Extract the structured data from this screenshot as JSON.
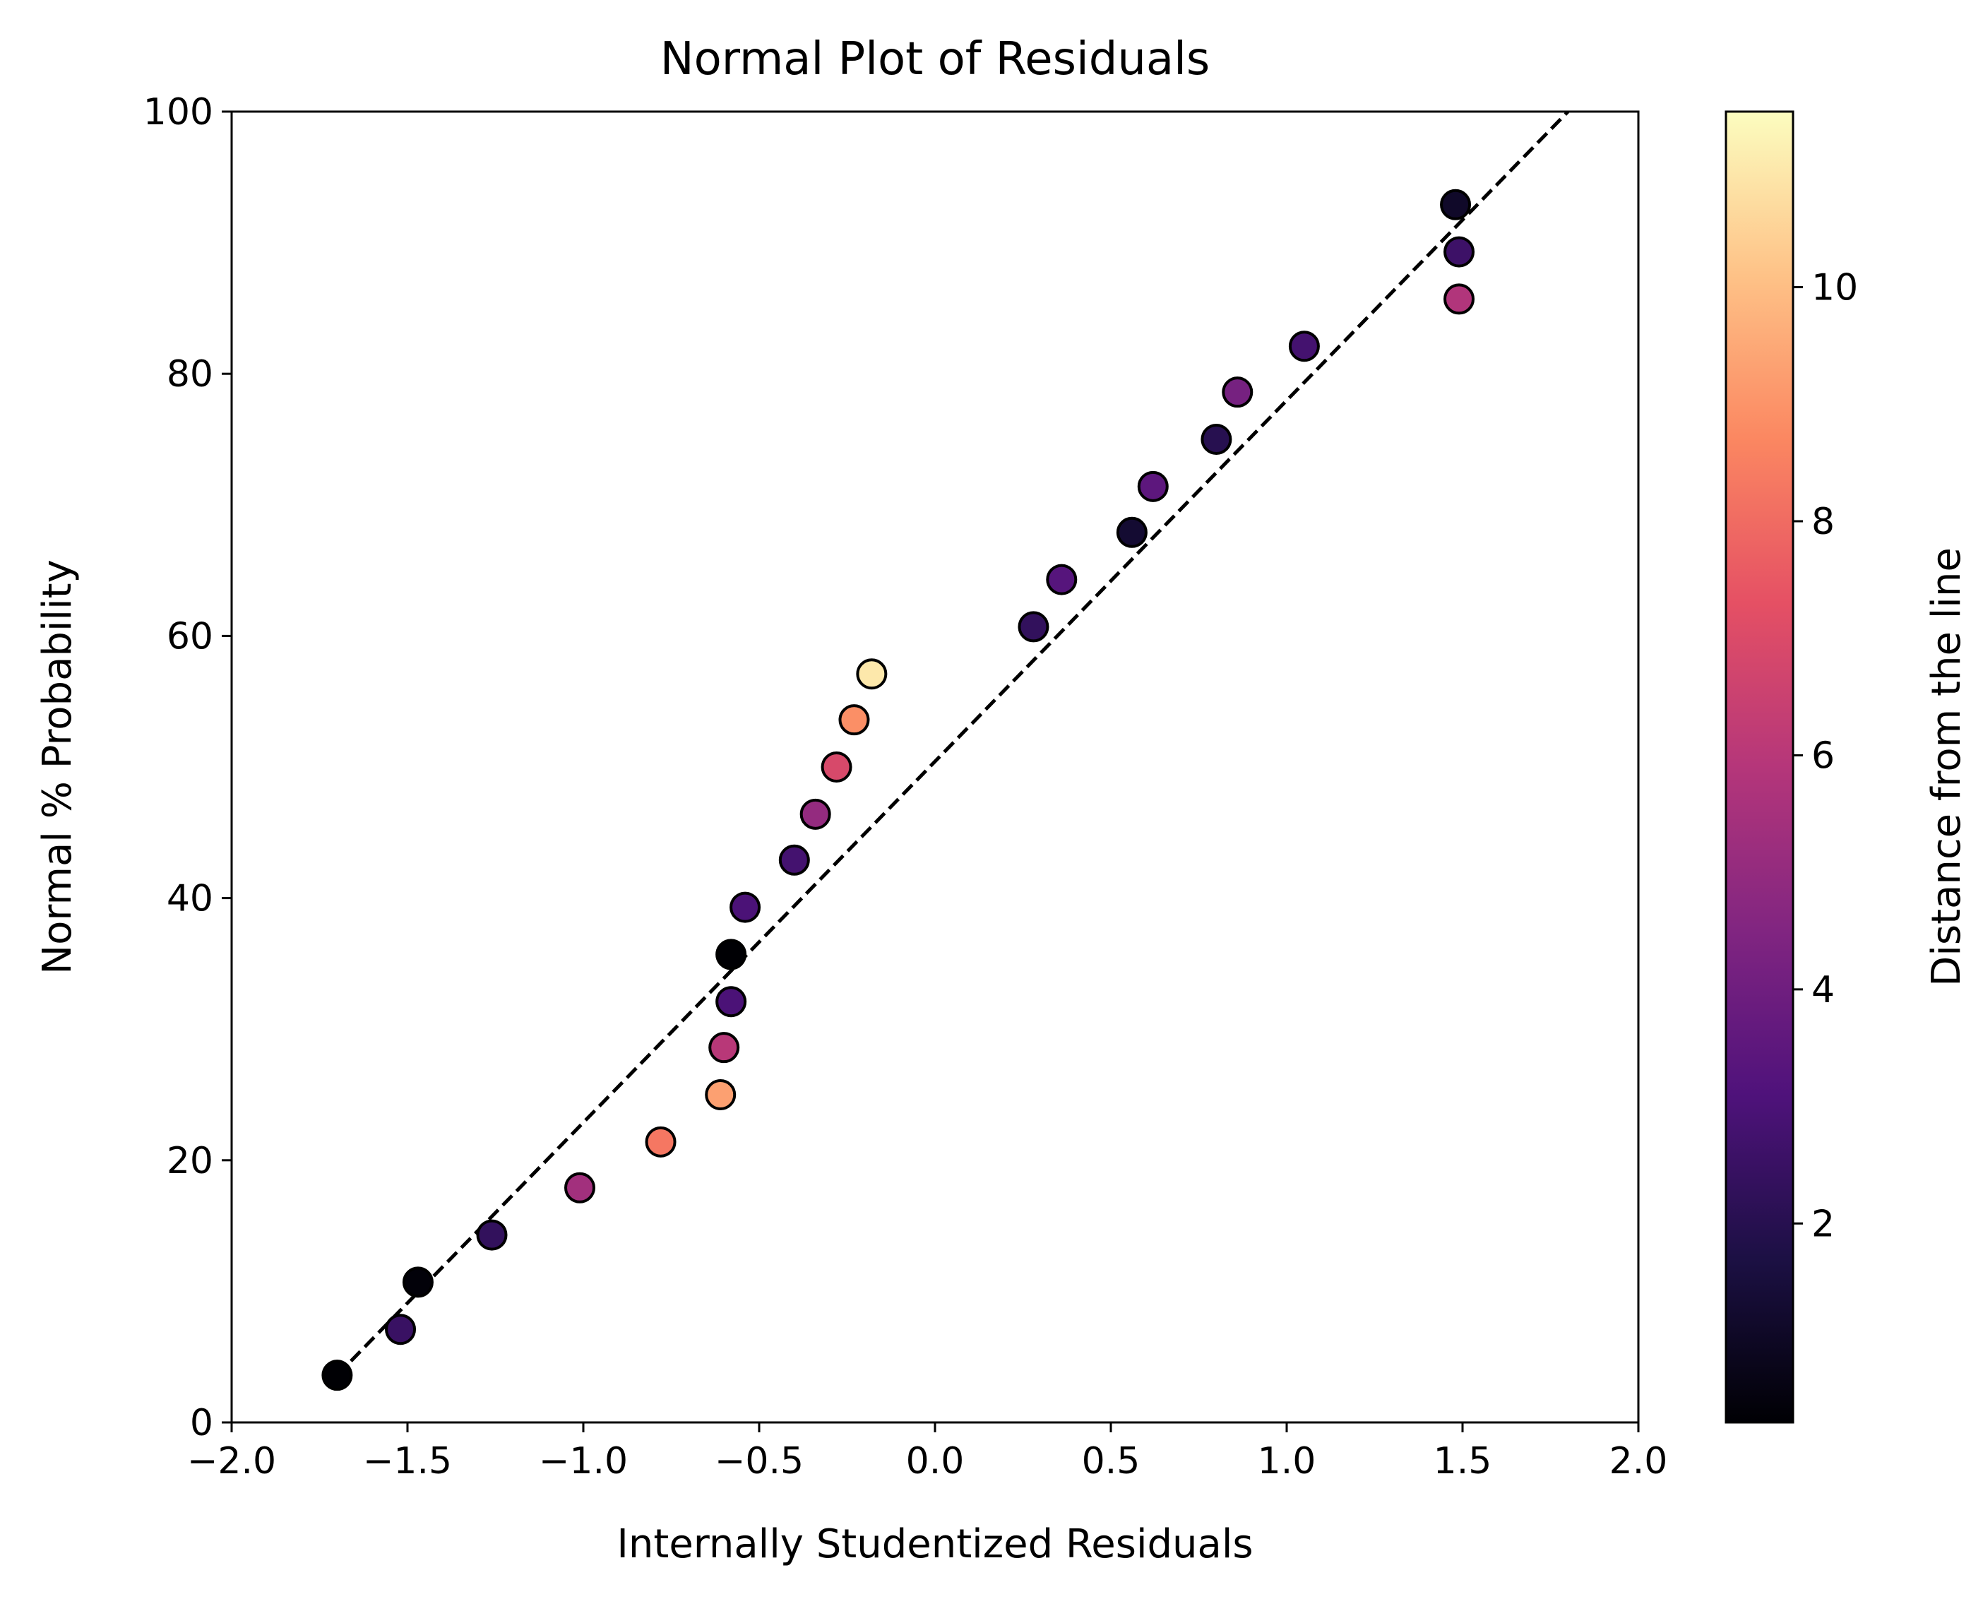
{
  "chart_data": {
    "type": "scatter",
    "title": "Normal Plot of Residuals",
    "xlabel": "Internally Studentized Residuals",
    "ylabel": "Normal % Probability",
    "xlim": [
      -2.0,
      2.0
    ],
    "ylim": [
      0,
      100
    ],
    "xticks": [
      -2.0,
      -1.5,
      -1.0,
      -0.5,
      0.0,
      0.5,
      1.0,
      1.5,
      2.0
    ],
    "xtick_labels": [
      "−2.0",
      "−1.5",
      "−1.0",
      "−0.5",
      "0.0",
      "0.5",
      "1.0",
      "1.5",
      "2.0"
    ],
    "yticks": [
      0,
      20,
      40,
      60,
      80,
      100
    ],
    "ytick_labels": [
      "0",
      "20",
      "40",
      "60",
      "80",
      "100"
    ],
    "reference_line": {
      "style": "dashed",
      "color": "#000000",
      "x": [
        -1.7,
        1.8
      ],
      "y": [
        3.6,
        100
      ]
    },
    "colorbar": {
      "label": "Distance from the line",
      "colormap": "magma",
      "range": [
        0.3,
        11.5
      ],
      "ticks": [
        2,
        4,
        6,
        8,
        10
      ],
      "tick_labels": [
        "2",
        "4",
        "6",
        "8",
        "10"
      ]
    },
    "points": [
      {
        "x": -1.7,
        "y": 3.6,
        "c": 0.3
      },
      {
        "x": -1.52,
        "y": 7.1,
        "c": 2.5
      },
      {
        "x": -1.47,
        "y": 10.7,
        "c": 0.4
      },
      {
        "x": -1.26,
        "y": 14.3,
        "c": 2.3
      },
      {
        "x": -1.01,
        "y": 17.9,
        "c": 5.4
      },
      {
        "x": -0.78,
        "y": 21.4,
        "c": 8.3
      },
      {
        "x": -0.61,
        "y": 25.0,
        "c": 9.3
      },
      {
        "x": -0.6,
        "y": 28.6,
        "c": 6.0
      },
      {
        "x": -0.58,
        "y": 32.1,
        "c": 3.0
      },
      {
        "x": -0.58,
        "y": 35.7,
        "c": 0.3
      },
      {
        "x": -0.54,
        "y": 39.3,
        "c": 3.0
      },
      {
        "x": -0.4,
        "y": 42.9,
        "c": 2.8
      },
      {
        "x": -0.34,
        "y": 46.4,
        "c": 5.0
      },
      {
        "x": -0.28,
        "y": 50.0,
        "c": 6.9
      },
      {
        "x": -0.23,
        "y": 53.6,
        "c": 8.9
      },
      {
        "x": -0.18,
        "y": 57.1,
        "c": 11.0
      },
      {
        "x": 0.28,
        "y": 60.7,
        "c": 2.3
      },
      {
        "x": 0.36,
        "y": 64.3,
        "c": 3.3
      },
      {
        "x": 0.56,
        "y": 67.9,
        "c": 1.3
      },
      {
        "x": 0.62,
        "y": 71.4,
        "c": 3.5
      },
      {
        "x": 0.8,
        "y": 75.0,
        "c": 2.0
      },
      {
        "x": 0.86,
        "y": 78.6,
        "c": 4.2
      },
      {
        "x": 1.05,
        "y": 82.1,
        "c": 2.8
      },
      {
        "x": 1.49,
        "y": 85.7,
        "c": 5.8
      },
      {
        "x": 1.49,
        "y": 89.3,
        "c": 2.6
      },
      {
        "x": 1.48,
        "y": 92.9,
        "c": 1.1
      }
    ]
  }
}
